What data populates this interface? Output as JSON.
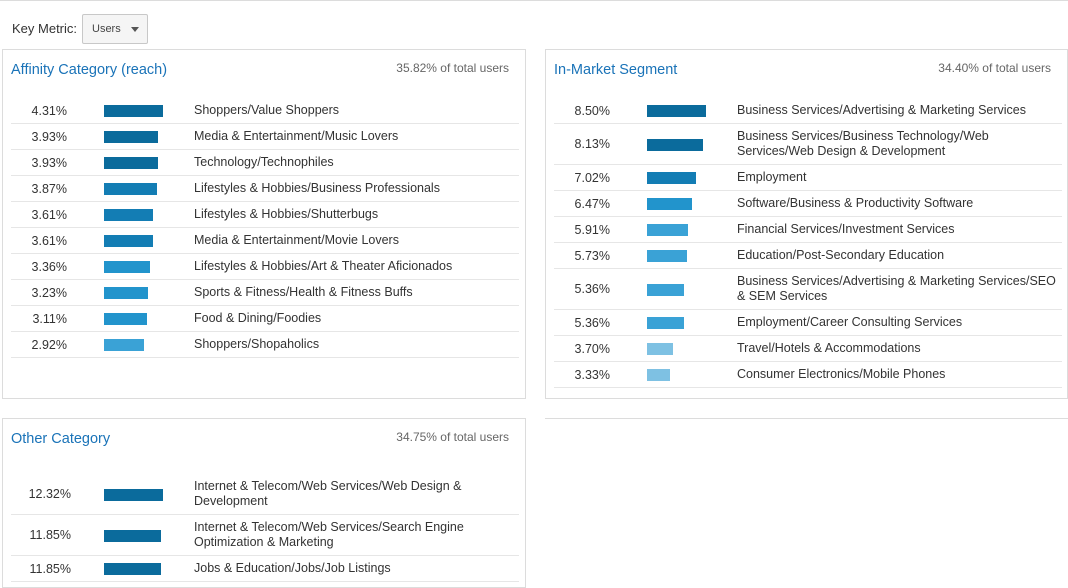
{
  "toolbar": {
    "metric_label": "Key Metric:",
    "metric_value": "Users"
  },
  "colors": {
    "title_blue": "#1a73b8",
    "bar_dark": "#0b6b9c",
    "bar_mid": "#2294cc",
    "bar_light": "#7ec1e3"
  },
  "panels": {
    "affinity": {
      "title": "Affinity Category (reach)",
      "share": "35.82% of total users",
      "rows": [
        {
          "pct": "4.31%",
          "value": 4.31,
          "label": "Shoppers/Value Shoppers"
        },
        {
          "pct": "3.93%",
          "value": 3.93,
          "label": "Media & Entertainment/Music Lovers"
        },
        {
          "pct": "3.93%",
          "value": 3.93,
          "label": "Technology/Technophiles"
        },
        {
          "pct": "3.87%",
          "value": 3.87,
          "label": "Lifestyles & Hobbies/Business Professionals"
        },
        {
          "pct": "3.61%",
          "value": 3.61,
          "label": "Lifestyles & Hobbies/Shutterbugs"
        },
        {
          "pct": "3.61%",
          "value": 3.61,
          "label": "Media & Entertainment/Movie Lovers"
        },
        {
          "pct": "3.36%",
          "value": 3.36,
          "label": "Lifestyles & Hobbies/Art & Theater Aficionados"
        },
        {
          "pct": "3.23%",
          "value": 3.23,
          "label": "Sports & Fitness/Health & Fitness Buffs"
        },
        {
          "pct": "3.11%",
          "value": 3.11,
          "label": "Food & Dining/Foodies"
        },
        {
          "pct": "2.92%",
          "value": 2.92,
          "label": "Shoppers/Shopaholics"
        }
      ]
    },
    "inmarket": {
      "title": "In-Market Segment",
      "share": "34.40% of total users",
      "rows": [
        {
          "pct": "8.50%",
          "value": 8.5,
          "label": "Business Services/Advertising & Marketing Services"
        },
        {
          "pct": "8.13%",
          "value": 8.13,
          "label": "Business Services/Business Technology/Web Services/Web Design & Development"
        },
        {
          "pct": "7.02%",
          "value": 7.02,
          "label": "Employment"
        },
        {
          "pct": "6.47%",
          "value": 6.47,
          "label": "Software/Business & Productivity Software"
        },
        {
          "pct": "5.91%",
          "value": 5.91,
          "label": "Financial Services/Investment Services"
        },
        {
          "pct": "5.73%",
          "value": 5.73,
          "label": "Education/Post-Secondary Education"
        },
        {
          "pct": "5.36%",
          "value": 5.36,
          "label": "Business Services/Advertising & Marketing Services/SEO & SEM Services"
        },
        {
          "pct": "5.36%",
          "value": 5.36,
          "label": "Employment/Career Consulting Services"
        },
        {
          "pct": "3.70%",
          "value": 3.7,
          "label": "Travel/Hotels & Accommodations"
        },
        {
          "pct": "3.33%",
          "value": 3.33,
          "label": "Consumer Electronics/Mobile Phones"
        }
      ]
    },
    "other": {
      "title": "Other Category",
      "share": "34.75% of total users",
      "rows": [
        {
          "pct": "12.32%",
          "value": 12.32,
          "label": "Internet & Telecom/Web Services/Web Design & Development"
        },
        {
          "pct": "11.85%",
          "value": 11.85,
          "label": "Internet & Telecom/Web Services/Search Engine Optimization & Marketing"
        },
        {
          "pct": "11.85%",
          "value": 11.85,
          "label": "Jobs & Education/Jobs/Job Listings"
        }
      ]
    }
  }
}
